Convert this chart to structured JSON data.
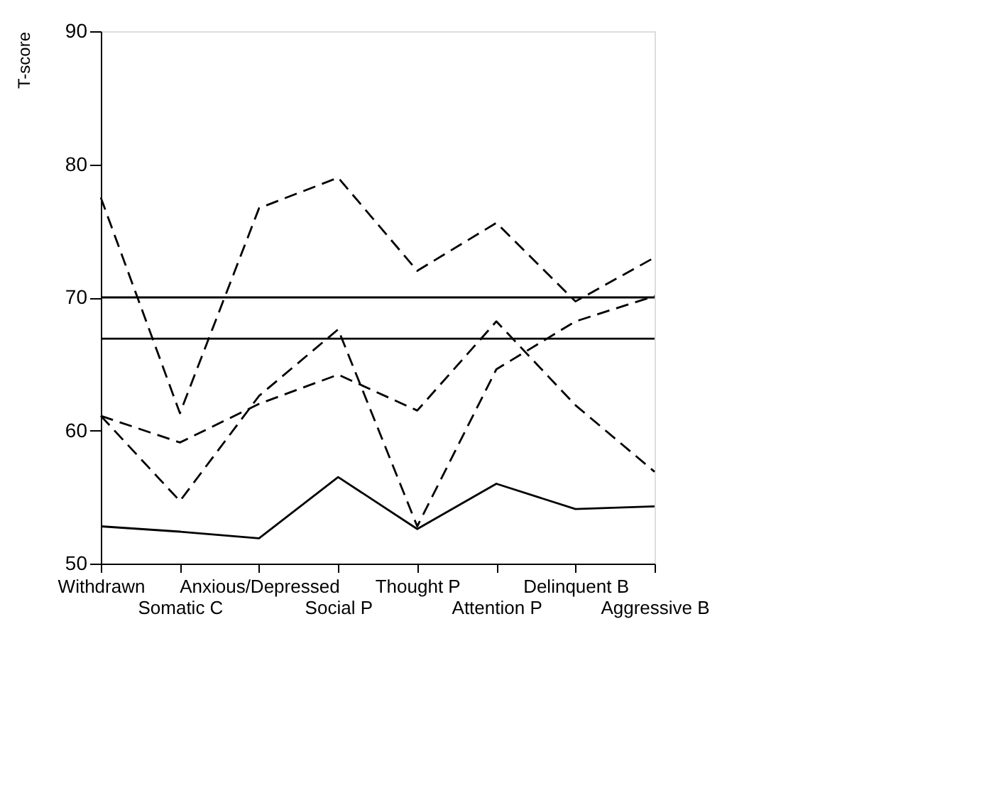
{
  "chart_data": {
    "type": "line",
    "ylabel": "T-score",
    "categories": [
      "Withdrawn",
      "Somatic C",
      "Anxious/Depressed",
      "Social P",
      "Thought P",
      "Attention P",
      "Delinquent B",
      "Aggressive B"
    ],
    "ylim": [
      50,
      90
    ],
    "yticks": [
      50,
      60,
      70,
      80,
      90
    ],
    "grid": false,
    "legend": false,
    "marker": "none",
    "series": [
      {
        "color": "#000000",
        "line_style": "dashed",
        "values": [
          77.5,
          61.3,
          76.7,
          79.0,
          72.0,
          75.6,
          69.7,
          73.0
        ]
      },
      {
        "color": "#000000",
        "line_style": "dashed",
        "values": [
          61.1,
          54.7,
          62.6,
          67.6,
          52.8,
          64.6,
          68.2,
          70.1
        ]
      },
      {
        "color": "#000000",
        "line_style": "dashed",
        "values": [
          61.1,
          59.1,
          62.0,
          64.2,
          61.5,
          68.2,
          61.9,
          56.9
        ]
      },
      {
        "color": "#000000",
        "line_style": "solid",
        "values": [
          52.8,
          52.4,
          51.9,
          56.5,
          52.6,
          56.0,
          54.1,
          54.3
        ]
      }
    ],
    "ref_lines": [
      {
        "axis": "y",
        "value": 70,
        "color": "#000000"
      },
      {
        "axis": "y",
        "value": 66.9,
        "color": "#000000"
      }
    ]
  }
}
